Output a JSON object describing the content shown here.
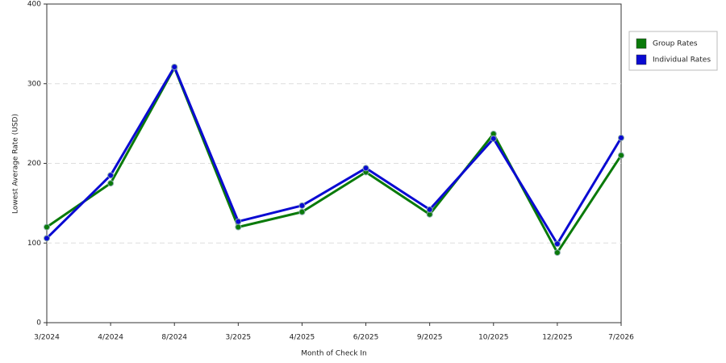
{
  "chart_data": {
    "type": "line",
    "x_label": "Month of Check In",
    "y_label": "Lowest Average Rate (USD)",
    "categories": [
      "3/2024",
      "4/2024",
      "8/2024",
      "3/2025",
      "4/2025",
      "6/2025",
      "9/2025",
      "10/2025",
      "12/2025",
      "7/2026"
    ],
    "series": [
      {
        "name": "Group Rates",
        "color": "#0a7a0a",
        "values": [
          120,
          175,
          320,
          120,
          139,
          189,
          136,
          237,
          88,
          210
        ]
      },
      {
        "name": "Individual Rates",
        "color": "#0a0ad2",
        "values": [
          106,
          185,
          321,
          127,
          147,
          194,
          142,
          231,
          99,
          232
        ]
      }
    ],
    "ylim": [
      0,
      400
    ],
    "yticks": [
      0,
      100,
      200,
      300,
      400
    ],
    "grid": true,
    "legend": "right"
  }
}
